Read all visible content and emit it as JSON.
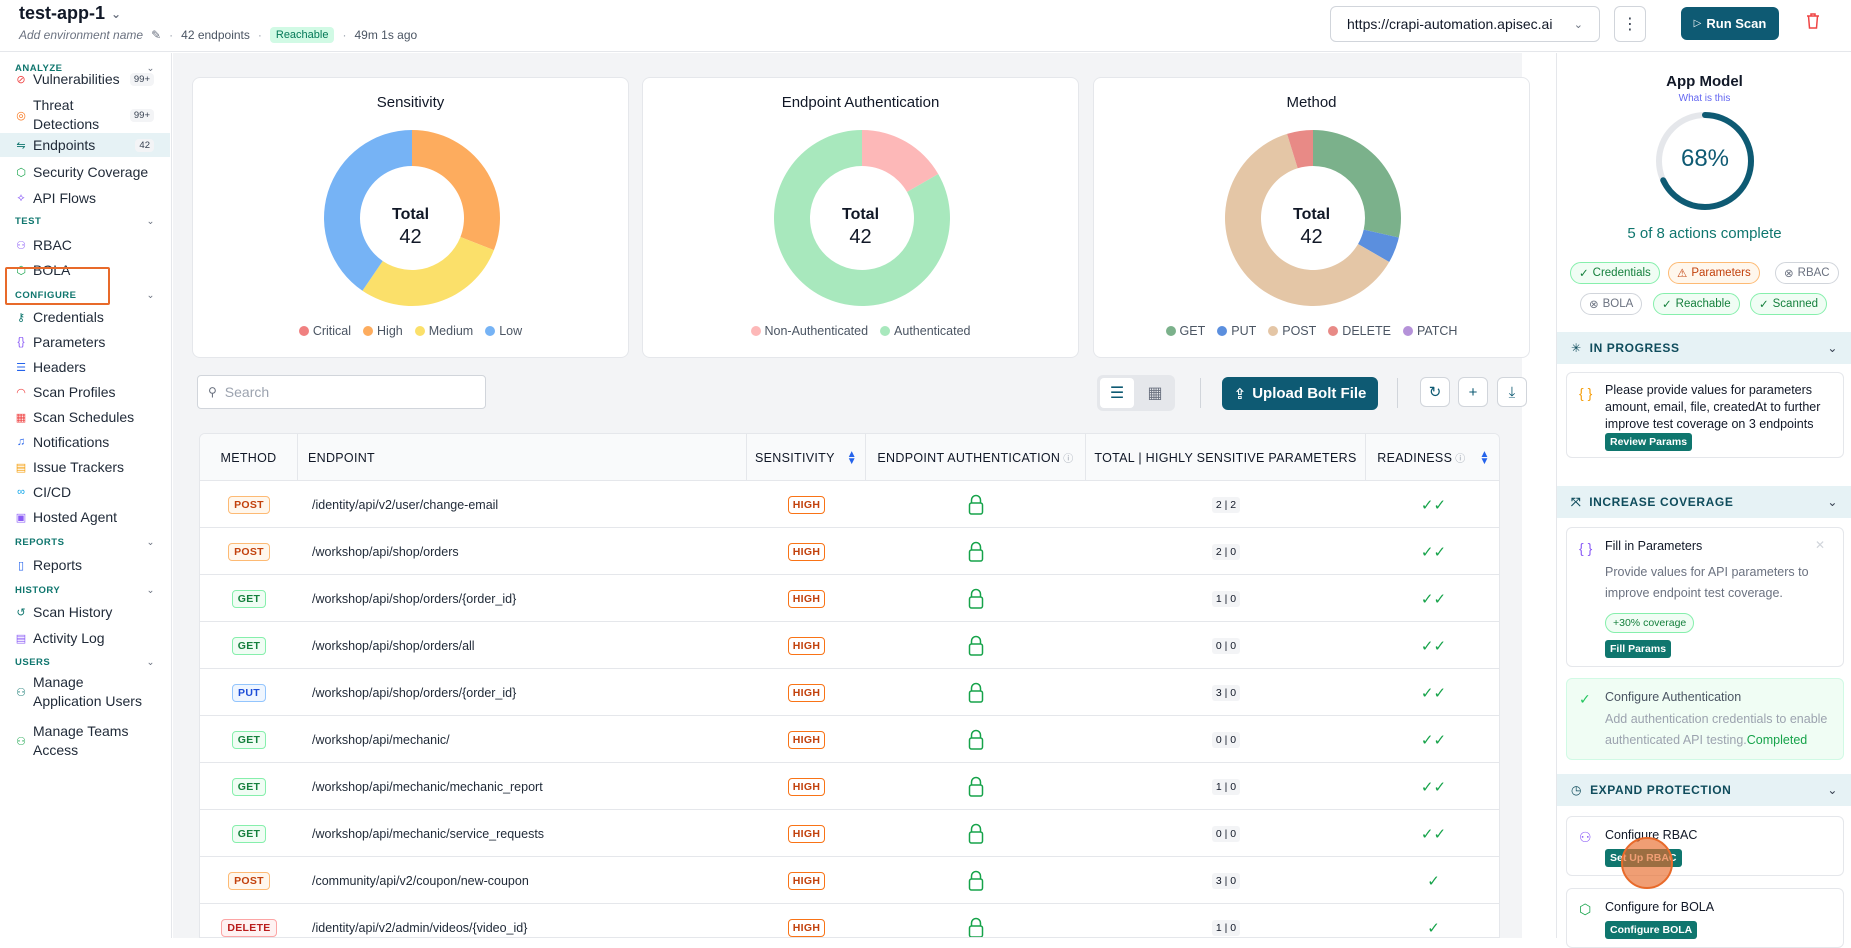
{
  "header": {
    "app_name": "test-app-1",
    "env_placeholder": "Add environment name",
    "endpoints_count": "42 endpoints",
    "status": "Reachable",
    "last_scan": "49m 1s ago",
    "url": "https://crapi-automation.apisec.ai",
    "run_scan": "Run Scan"
  },
  "sidebar": {
    "analyze": "ANALYZE",
    "test": "TEST",
    "configure": "CONFIGURE",
    "reports": "REPORTS",
    "history": "HISTORY",
    "users": "USERS",
    "items": [
      {
        "label": "Vulnerabilities",
        "count": "99+"
      },
      {
        "label": "Threat Detections",
        "count": "99+"
      },
      {
        "label": "Endpoints",
        "count": "42"
      },
      {
        "label": "Security Coverage"
      },
      {
        "label": "API Flows"
      },
      {
        "label": "RBAC"
      },
      {
        "label": "BOLA"
      },
      {
        "label": "Credentials"
      },
      {
        "label": "Parameters"
      },
      {
        "label": "Headers"
      },
      {
        "label": "Scan Profiles"
      },
      {
        "label": "Scan Schedules"
      },
      {
        "label": "Notifications"
      },
      {
        "label": "Issue Trackers"
      },
      {
        "label": "CI/CD"
      },
      {
        "label": "Hosted Agent"
      },
      {
        "label": "Reports"
      },
      {
        "label": "Scan History"
      },
      {
        "label": "Activity Log"
      },
      {
        "label": "Manage Application Users"
      },
      {
        "label": "Manage Teams Access"
      }
    ]
  },
  "charts": {
    "total_label": "Total",
    "sensitivity": {
      "title": "Sensitivity",
      "total": "42"
    },
    "authentication": {
      "title": "Endpoint Authentication",
      "total": "42"
    },
    "method": {
      "title": "Method",
      "total": "42"
    }
  },
  "chart_data": [
    {
      "type": "pie",
      "title": "Sensitivity",
      "categories": [
        "Critical",
        "High",
        "Medium",
        "Low"
      ],
      "values": [
        0,
        13,
        12,
        17
      ],
      "colors": [
        "#f08080",
        "#fdac5e",
        "#fbe06a",
        "#76b3f5"
      ]
    },
    {
      "type": "pie",
      "title": "Endpoint Authentication",
      "categories": [
        "Non-Authenticated",
        "Authenticated"
      ],
      "values": [
        7,
        35
      ],
      "colors": [
        "#fdb8b8",
        "#a8e8bd"
      ]
    },
    {
      "type": "pie",
      "title": "Method",
      "categories": [
        "GET",
        "PUT",
        "POST",
        "DELETE",
        "PATCH"
      ],
      "values": [
        12,
        2,
        26,
        2,
        0
      ],
      "colors": [
        "#7bb18b",
        "#5b8fde",
        "#e4c6a6",
        "#e88a86",
        "#b592d9"
      ]
    }
  ],
  "toolbar": {
    "search_placeholder": "Search",
    "upload": "Upload Bolt File"
  },
  "table": {
    "headers": [
      "METHOD",
      "ENDPOINT",
      "SENSITIVITY",
      "ENDPOINT AUTHENTICATION",
      "TOTAL | HIGHLY SENSITIVE PARAMETERS",
      "READINESS"
    ],
    "rows": [
      {
        "method": "POST",
        "endpoint": "/identity/api/v2/user/change-email",
        "sensitivity": "HIGH",
        "params": "2 | 2",
        "ready": "✓✓"
      },
      {
        "method": "POST",
        "endpoint": "/workshop/api/shop/orders",
        "sensitivity": "HIGH",
        "params": "2 | 0",
        "ready": "✓✓"
      },
      {
        "method": "GET",
        "endpoint": "/workshop/api/shop/orders/{order_id}",
        "sensitivity": "HIGH",
        "params": "1 | 0",
        "ready": "✓✓"
      },
      {
        "method": "GET",
        "endpoint": "/workshop/api/shop/orders/all",
        "sensitivity": "HIGH",
        "params": "0 | 0",
        "ready": "✓✓"
      },
      {
        "method": "PUT",
        "endpoint": "/workshop/api/shop/orders/{order_id}",
        "sensitivity": "HIGH",
        "params": "3 | 0",
        "ready": "✓✓"
      },
      {
        "method": "GET",
        "endpoint": "/workshop/api/mechanic/",
        "sensitivity": "HIGH",
        "params": "0 | 0",
        "ready": "✓✓"
      },
      {
        "method": "GET",
        "endpoint": "/workshop/api/mechanic/mechanic_report",
        "sensitivity": "HIGH",
        "params": "1 | 0",
        "ready": "✓✓"
      },
      {
        "method": "GET",
        "endpoint": "/workshop/api/mechanic/service_requests",
        "sensitivity": "HIGH",
        "params": "0 | 0",
        "ready": "✓✓"
      },
      {
        "method": "POST",
        "endpoint": "/community/api/v2/coupon/new-coupon",
        "sensitivity": "HIGH",
        "params": "3 | 0",
        "ready": "✓"
      },
      {
        "method": "DELETE",
        "endpoint": "/identity/api/v2/admin/videos/{video_id}",
        "sensitivity": "HIGH",
        "params": "1 | 0",
        "ready": "✓"
      }
    ]
  },
  "rightpanel": {
    "title": "App Model",
    "what": "What is this",
    "percent": "68%",
    "progress": 0.68,
    "actions": "5 of 8 actions complete",
    "chips": [
      "Credentials",
      "Parameters",
      "RBAC",
      "BOLA",
      "Reachable",
      "Scanned"
    ],
    "in_progress": "IN PROGRESS",
    "in_progress_text": "Please provide values for parameters amount, email, file, createdAt to further improve test coverage on 3 endpoints",
    "review_params": "Review Params",
    "increase_coverage": "INCREASE COVERAGE",
    "fill_title": "Fill in Parameters",
    "fill_text": "Provide values for API parameters to improve endpoint test coverage.",
    "coverage_badge": "+30% coverage",
    "fill_params": "Fill Params",
    "auth_title": "Configure Authentication",
    "auth_text": "Add authentication credentials to enable authenticated API testing.",
    "auth_completed": "Completed",
    "expand_protection": "EXPAND PROTECTION",
    "rbac_title": "Configure RBAC",
    "rbac_btn": "Set Up RBAC",
    "bola_title": "Configure for BOLA",
    "bola_btn": "Configure BOLA"
  }
}
